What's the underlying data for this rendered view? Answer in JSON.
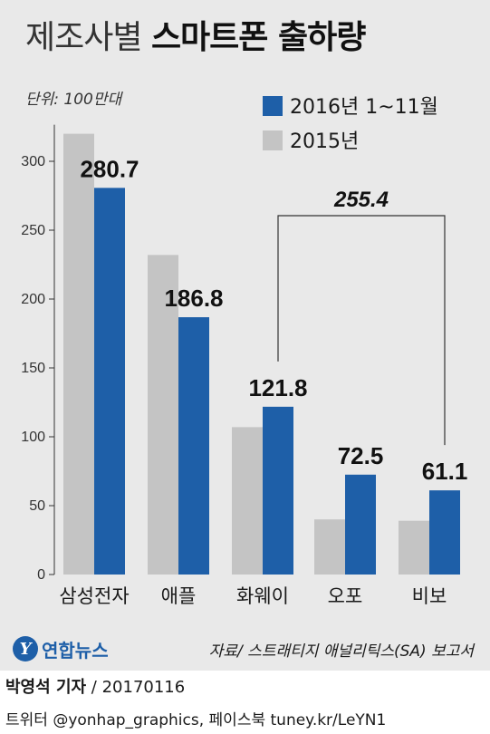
{
  "header": {
    "title_light": "제조사별",
    "title_bold": "스마트폰 출하량",
    "unit": "단위: 100만대"
  },
  "colors": {
    "series_2016": "#1e5fa8",
    "series_2015": "#c4c4c4",
    "background": "#e9e9e9"
  },
  "chart_data": {
    "type": "bar",
    "categories": [
      "삼성전자",
      "애플",
      "화웨이",
      "오포",
      "비보"
    ],
    "series": [
      {
        "name": "2015년",
        "values": [
          320,
          232,
          107,
          40,
          39
        ],
        "color": "#c4c4c4",
        "labeled": false
      },
      {
        "name": "2016년 1~11월",
        "values": [
          280.7,
          186.8,
          121.8,
          72.5,
          61.1
        ],
        "color": "#1e5fa8",
        "labeled": true
      }
    ],
    "data_labels": [
      "280.7",
      "186.8",
      "121.8",
      "72.5",
      "61.1"
    ],
    "yticks": [
      0,
      50,
      100,
      150,
      200,
      250,
      300
    ],
    "ylim": [
      0,
      320
    ],
    "legend": [
      "2016년 1~11월",
      "2015년"
    ],
    "legend_position": "top-right",
    "annotation": {
      "text": "255.4",
      "spans": [
        "화웨이",
        "비보"
      ]
    },
    "grid": false
  },
  "footer": {
    "logo_mark": "Y",
    "logo_text": "연합뉴스",
    "source": "자료/ 스트래티지 애널리틱스(SA) 보고서",
    "byline_name": "박영석 기자",
    "byline_date": " / 20170116",
    "social": "트위터 @yonhap_graphics, 페이스북 tuney.kr/LeYN1"
  }
}
